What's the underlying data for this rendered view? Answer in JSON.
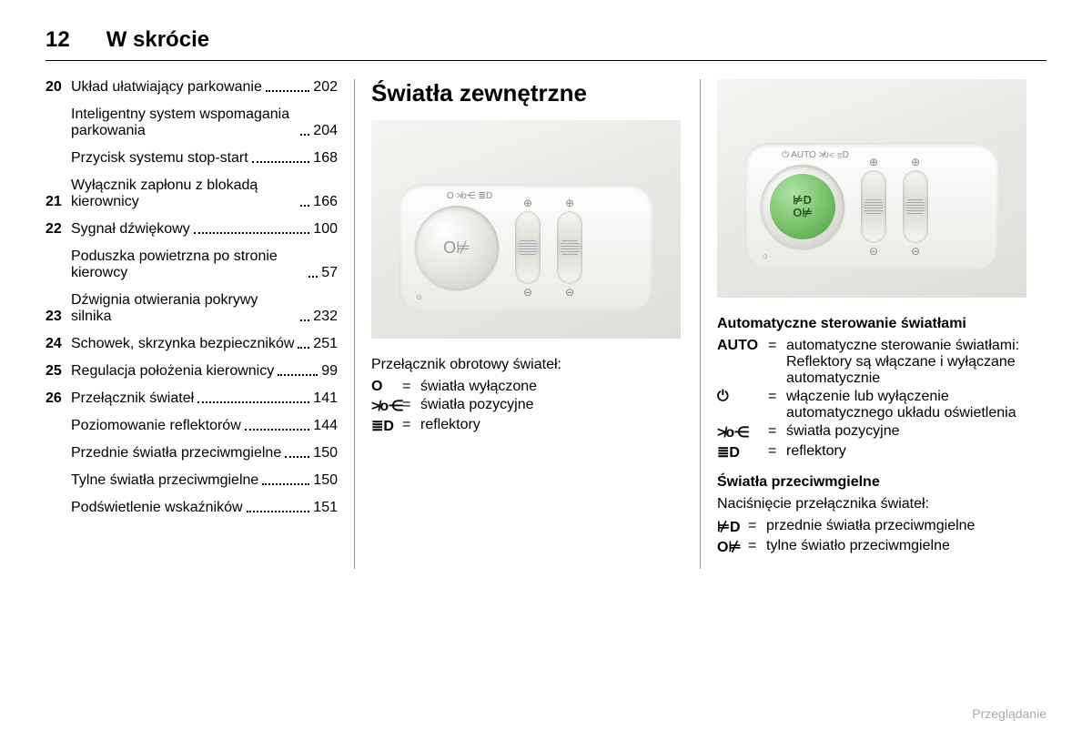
{
  "header": {
    "page_number": "12",
    "section_title": "W skrócie"
  },
  "toc": [
    {
      "num": "20",
      "label": "Układ ułatwiający parkowanie",
      "page": "202"
    },
    {
      "num": "",
      "label": "Inteligentny system wspomagania parkowania",
      "page": "204"
    },
    {
      "num": "",
      "label": "Przycisk systemu stop-start",
      "page": "168"
    },
    {
      "num": "21",
      "label": "Wyłącznik zapłonu z blokadą kierownicy",
      "page": "166"
    },
    {
      "num": "22",
      "label": "Sygnał dźwiękowy",
      "page": "100"
    },
    {
      "num": "",
      "label": "Poduszka powietrzna po stronie kierowcy",
      "page": "57"
    },
    {
      "num": "23",
      "label": "Dźwignia otwierania pokrywy silnika",
      "page": "232"
    },
    {
      "num": "24",
      "label": "Schowek, skrzynka bezpieczników",
      "page": "251"
    },
    {
      "num": "25",
      "label": "Regulacja położenia kierownicy",
      "page": "99"
    },
    {
      "num": "26",
      "label": "Przełącznik świateł",
      "page": "141"
    },
    {
      "num": "",
      "label": "Poziomowanie reflektorów",
      "page": "144"
    },
    {
      "num": "",
      "label": "Przednie światła przeciwmgielne",
      "page": "150"
    },
    {
      "num": "",
      "label": "Tylne światła przeciwmgielne",
      "page": "150"
    },
    {
      "num": "",
      "label": "Podświetlenie wskaźników",
      "page": "151"
    }
  ],
  "col2": {
    "heading": "Światła zewnętrzne",
    "legend_title": "Przełącznik obrotowy świateł:",
    "rows": [
      {
        "sym": "O",
        "text": "światła wyłączone"
      },
      {
        "sym": "≯o⋲",
        "text": "światła pozycyjne"
      },
      {
        "sym": "≣D",
        "text": "reflektory"
      }
    ]
  },
  "col3": {
    "heading_bold": "Automatyczne sterowanie światłami",
    "rows_auto": [
      {
        "sym": "AUTO",
        "text": "automatyczne sterowanie światłami: Reflektory są włączane i wyłączane automatycznie"
      },
      {
        "sym": "⏻",
        "text": "włączenie lub wyłączenie automatycznego układu oświetlenia"
      },
      {
        "sym": "≯o⋲",
        "text": "światła pozycyjne"
      },
      {
        "sym": "≣D",
        "text": "reflektory"
      }
    ],
    "fog_heading": "Światła przeciwmgielne",
    "fog_sub": "Naciśnięcie przełącznika świateł:",
    "rows_fog": [
      {
        "sym": "⊭D",
        "text": "przednie światła przeciwmgielne"
      },
      {
        "sym": "O⊭",
        "text": "tylne światło przeciwmgielne"
      }
    ]
  },
  "footer": "Przeglądanie",
  "panel_labels": {
    "arc_top": "O  ≯o⋲  ≣D",
    "arc_top2": "⏻  AUTO ≯o⋲  ≣D",
    "dial_icon1": "O⊭",
    "dial_icon2_top": "⊭D",
    "dial_icon2_bot": "O⊭",
    "brightness": "☼",
    "wheel_top": "⊕",
    "wheel_bot": "⊖"
  }
}
